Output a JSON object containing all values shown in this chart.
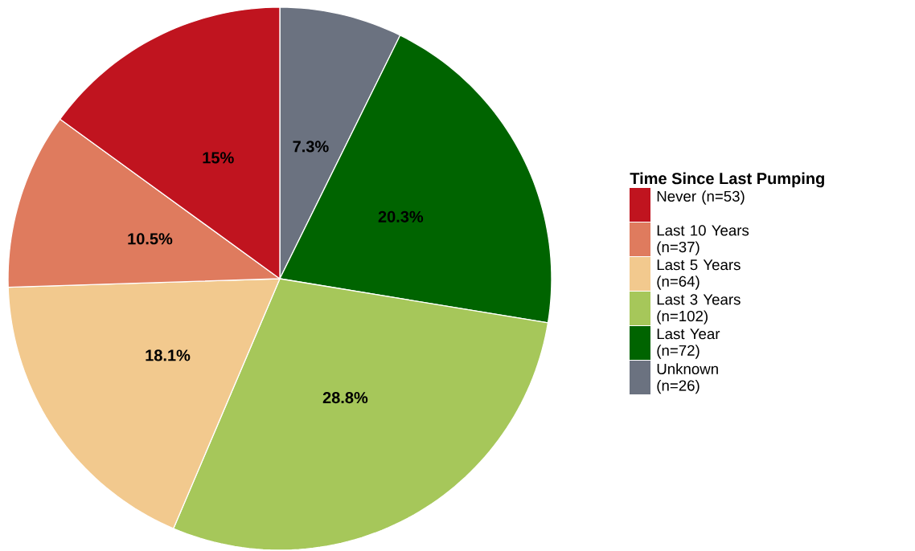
{
  "chart_data": {
    "type": "pie",
    "legend_title": "Time Since Last Pumping",
    "categories": [
      "Never (n=53)",
      "Last 10 Years (n=37)",
      "Last 5 Years (n=64)",
      "Last 3 Years (n=102)",
      "Last Year (n=72)",
      "Unknown (n=26)"
    ],
    "values": [
      15,
      10.5,
      18.1,
      28.8,
      20.3,
      7.3
    ],
    "value_labels": [
      "15%",
      "10.5%",
      "18.1%",
      "28.8%",
      "20.3%",
      "7.3%"
    ],
    "colors": [
      "#c0141f",
      "#df7b5e",
      "#f2c98e",
      "#a6c75a",
      "#006400",
      "#6b7280"
    ],
    "legend": "right"
  }
}
